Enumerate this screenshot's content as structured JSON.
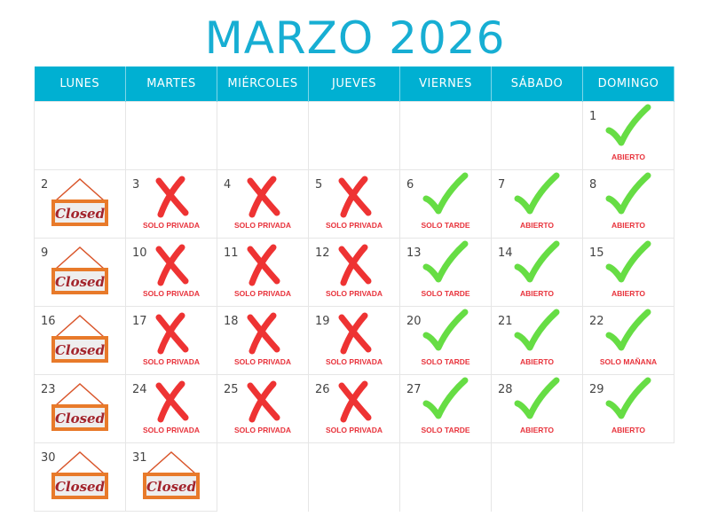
{
  "title": "MARZO 2026",
  "colors": {
    "header": "#00b0d2",
    "title": "#17aed3",
    "check": "#66dd44",
    "cross": "#ee3333",
    "label": "#e8333c",
    "sign": "#e87a2a"
  },
  "weekdays": [
    "LUNES",
    "MARTES",
    "MIÉRCOLES",
    "JUEVES",
    "VIERNES",
    "SÁBADO",
    "DOMINGO"
  ],
  "sign_text": "Closed",
  "weeks": [
    [
      null,
      null,
      null,
      null,
      null,
      null,
      {
        "day": "1",
        "icon": "check-icon",
        "label": "ABIERTO"
      }
    ],
    [
      {
        "day": "2",
        "icon": "closed-sign-icon",
        "label": ""
      },
      {
        "day": "3",
        "icon": "cross-icon",
        "label": "SOLO PRIVADA"
      },
      {
        "day": "4",
        "icon": "cross-icon",
        "label": "SOLO PRIVADA"
      },
      {
        "day": "5",
        "icon": "cross-icon",
        "label": "SOLO PRIVADA"
      },
      {
        "day": "6",
        "icon": "check-icon",
        "label": "SOLO TARDE"
      },
      {
        "day": "7",
        "icon": "check-icon",
        "label": "ABIERTO"
      },
      {
        "day": "8",
        "icon": "check-icon",
        "label": "ABIERTO"
      }
    ],
    [
      {
        "day": "9",
        "icon": "closed-sign-icon",
        "label": ""
      },
      {
        "day": "10",
        "icon": "cross-icon",
        "label": "SOLO PRIVADA"
      },
      {
        "day": "11",
        "icon": "cross-icon",
        "label": "SOLO PRIVADA"
      },
      {
        "day": "12",
        "icon": "cross-icon",
        "label": "SOLO PRIVADA"
      },
      {
        "day": "13",
        "icon": "check-icon",
        "label": "SOLO TARDE"
      },
      {
        "day": "14",
        "icon": "check-icon",
        "label": "ABIERTO"
      },
      {
        "day": "15",
        "icon": "check-icon",
        "label": "ABIERTO"
      }
    ],
    [
      {
        "day": "16",
        "icon": "closed-sign-icon",
        "label": ""
      },
      {
        "day": "17",
        "icon": "cross-icon",
        "label": "SOLO PRIVADA"
      },
      {
        "day": "18",
        "icon": "cross-icon",
        "label": "SOLO PRIVADA"
      },
      {
        "day": "19",
        "icon": "cross-icon",
        "label": "SOLO PRIVADA"
      },
      {
        "day": "20",
        "icon": "check-icon",
        "label": "SOLO TARDE"
      },
      {
        "day": "21",
        "icon": "check-icon",
        "label": "ABIERTO"
      },
      {
        "day": "22",
        "icon": "check-icon",
        "label": "SOLO MAÑANA"
      }
    ],
    [
      {
        "day": "23",
        "icon": "closed-sign-icon",
        "label": ""
      },
      {
        "day": "24",
        "icon": "cross-icon",
        "label": "SOLO PRIVADA"
      },
      {
        "day": "25",
        "icon": "cross-icon",
        "label": "SOLO PRIVADA"
      },
      {
        "day": "26",
        "icon": "cross-icon",
        "label": "SOLO PRIVADA"
      },
      {
        "day": "27",
        "icon": "check-icon",
        "label": "SOLO TARDE"
      },
      {
        "day": "28",
        "icon": "check-icon",
        "label": "ABIERTO"
      },
      {
        "day": "29",
        "icon": "check-icon",
        "label": "ABIERTO"
      }
    ],
    [
      {
        "day": "30",
        "icon": "closed-sign-icon",
        "label": ""
      },
      {
        "day": "31",
        "icon": "closed-sign-icon",
        "label": ""
      },
      null,
      null,
      null,
      null,
      null
    ]
  ]
}
